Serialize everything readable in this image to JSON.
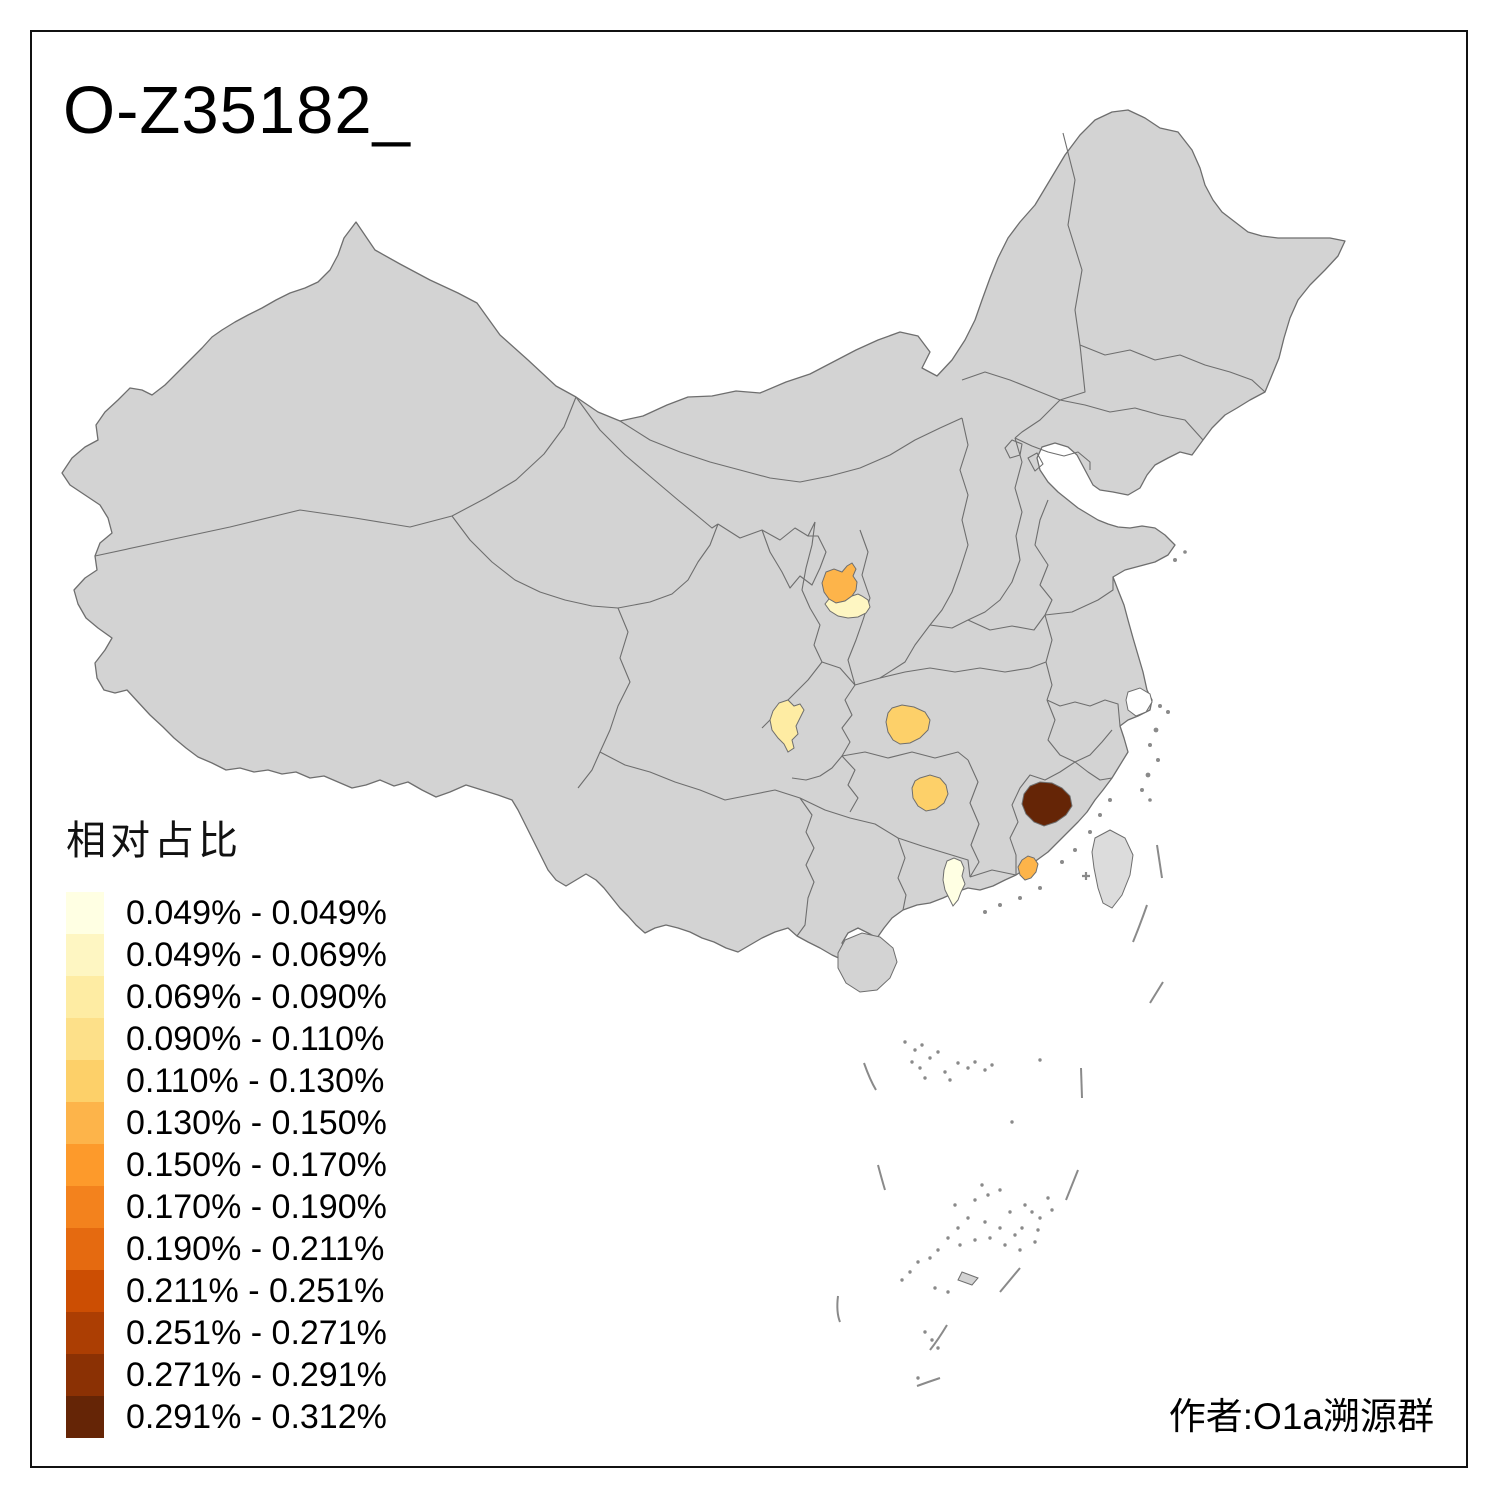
{
  "title": "O-Z35182_",
  "legend": {
    "title": "相对占比",
    "items": [
      {
        "range": "0.049% - 0.049%",
        "color": "#FFFFE3"
      },
      {
        "range": "0.049% - 0.069%",
        "color": "#FEF6C2"
      },
      {
        "range": "0.069% - 0.090%",
        "color": "#FEECA3"
      },
      {
        "range": "0.090% - 0.110%",
        "color": "#FDE089"
      },
      {
        "range": "0.110% - 0.130%",
        "color": "#FDD069"
      },
      {
        "range": "0.130% - 0.150%",
        "color": "#FDB44A"
      },
      {
        "range": "0.150% - 0.170%",
        "color": "#FD9A2B"
      },
      {
        "range": "0.170% - 0.190%",
        "color": "#F3821D"
      },
      {
        "range": "0.190% - 0.211%",
        "color": "#E56A10"
      },
      {
        "range": "0.211% - 0.251%",
        "color": "#CC4E03"
      },
      {
        "range": "0.251% - 0.271%",
        "color": "#AC3E03"
      },
      {
        "range": "0.271% - 0.291%",
        "color": "#8B3104"
      },
      {
        "range": "0.291% - 0.312%",
        "color": "#652506"
      }
    ]
  },
  "attribution": "作者:O1a溯源群",
  "map": {
    "base_fill": "#D3D3D3",
    "island_fill": "#DCDCDC",
    "border_color": "#6E6E6E",
    "sea_fill": "#FFFFFF",
    "regions": [
      {
        "id": "highlight-gansu-east-upper",
        "value_range": "0.130% - 0.150%",
        "legend_index": 5
      },
      {
        "id": "highlight-gansu-east-lower",
        "value_range": "0.049% - 0.069%",
        "legend_index": 1
      },
      {
        "id": "highlight-ne-sichuan",
        "value_range": "0.069% - 0.090%",
        "legend_index": 2
      },
      {
        "id": "highlight-nw-hubei",
        "value_range": "0.110% - 0.130%",
        "legend_index": 4
      },
      {
        "id": "highlight-north-hunan",
        "value_range": "0.110% - 0.130%",
        "legend_index": 4
      },
      {
        "id": "highlight-west-fujian",
        "value_range": "0.291% - 0.312%",
        "legend_index": 12
      },
      {
        "id": "highlight-west-guangdong",
        "value_range": "0.049% - 0.049%",
        "legend_index": 0
      },
      {
        "id": "highlight-east-guangdong",
        "value_range": "0.130% - 0.150%",
        "legend_index": 5
      }
    ]
  },
  "chart_data": {
    "type": "choropleth-map",
    "title": "O-Z35182_",
    "legend_title": "相对占比",
    "classes": [
      "0.049% - 0.049%",
      "0.049% - 0.069%",
      "0.069% - 0.090%",
      "0.090% - 0.110%",
      "0.110% - 0.130%",
      "0.130% - 0.150%",
      "0.150% - 0.170%",
      "0.170% - 0.190%",
      "0.190% - 0.211%",
      "0.211% - 0.251%",
      "0.251% - 0.271%",
      "0.271% - 0.291%",
      "0.291% - 0.312%"
    ],
    "highlighted_prefectures": [
      {
        "location": "east Gansu (upper)",
        "class": "0.130% - 0.150%"
      },
      {
        "location": "east Gansu (lower)",
        "class": "0.049% - 0.069%"
      },
      {
        "location": "northeast Sichuan",
        "class": "0.069% - 0.090%"
      },
      {
        "location": "northwest Hubei",
        "class": "0.110% - 0.130%"
      },
      {
        "location": "north Hunan",
        "class": "0.110% - 0.130%"
      },
      {
        "location": "west Fujian",
        "class": "0.291% - 0.312%"
      },
      {
        "location": "west Guangdong",
        "class": "0.049% - 0.049%"
      },
      {
        "location": "east Guangdong",
        "class": "0.130% - 0.150%"
      }
    ],
    "attribution": "作者:O1a溯源群"
  }
}
